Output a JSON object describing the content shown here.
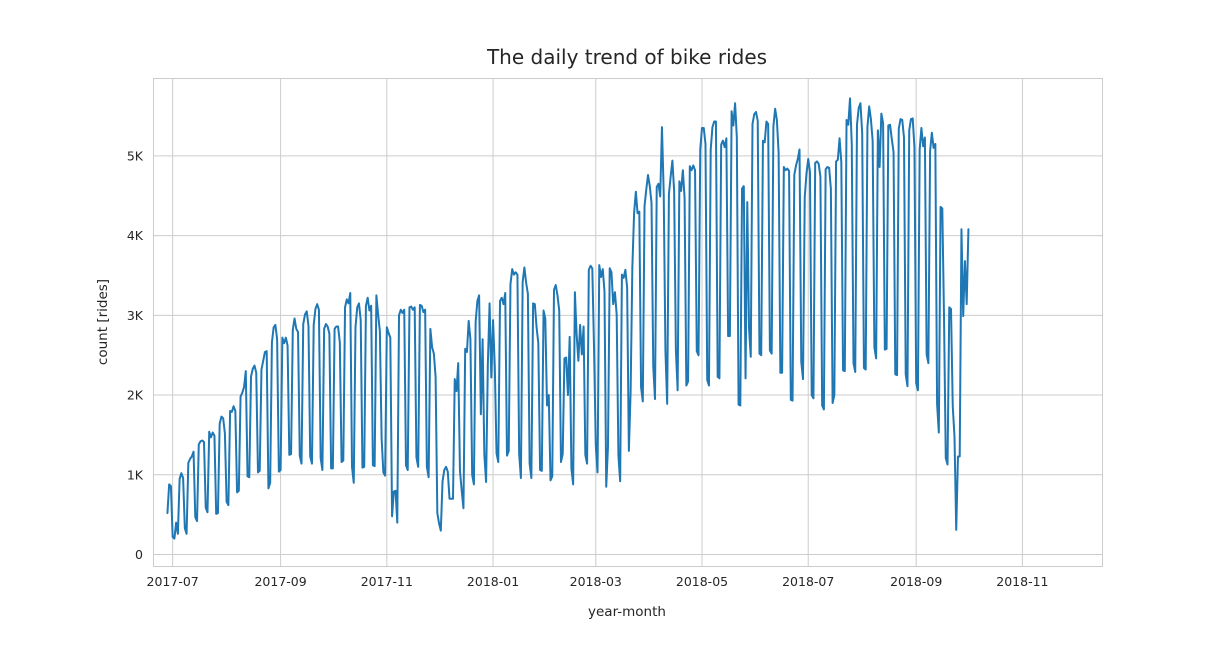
{
  "chart_data": {
    "type": "line",
    "title": "The daily trend of bike rides",
    "xlabel": "year-month",
    "ylabel": "count [rides]",
    "x_ticks": [
      "2017-07",
      "2017-09",
      "2017-11",
      "2018-01",
      "2018-03",
      "2018-05",
      "2018-07",
      "2018-09",
      "2018-11"
    ],
    "y_ticks": [
      {
        "value": 0,
        "label": "0"
      },
      {
        "value": 1000,
        "label": "1K"
      },
      {
        "value": 2000,
        "label": "2K"
      },
      {
        "value": 3000,
        "label": "3K"
      },
      {
        "value": 4000,
        "label": "4K"
      },
      {
        "value": 5000,
        "label": "5K"
      }
    ],
    "xlim": [
      "2017-06-20",
      "2018-12-17"
    ],
    "ylim": [
      -150,
      5970
    ],
    "grid": true,
    "line_color": "#1f77b4",
    "series": [
      {
        "x_start": "2017-06-28",
        "values": [
          520,
          880,
          860,
          220,
          200,
          400,
          260,
          950,
          1020,
          960,
          330,
          260,
          1150,
          1200,
          1230,
          1290,
          470,
          420,
          1380,
          1420,
          1430,
          1410,
          590,
          530,
          1540,
          1470,
          1530,
          1490,
          510,
          520,
          1640,
          1730,
          1710,
          1520,
          660,
          620,
          1800,
          1790,
          1860,
          1800,
          780,
          800,
          1980,
          2030,
          2100,
          2300,
          980,
          970,
          2230,
          2330,
          2370,
          2280,
          1030,
          1050,
          2320,
          2430,
          2540,
          2550,
          830,
          900,
          2660,
          2850,
          2880,
          2700,
          1040,
          1060,
          2720,
          2650,
          2720,
          2620,
          1250,
          1260,
          2820,
          2960,
          2830,
          2790,
          1240,
          1140,
          2890,
          3010,
          3050,
          2870,
          1230,
          1140,
          2880,
          3080,
          3140,
          3070,
          1210,
          1060,
          2830,
          2890,
          2860,
          2770,
          1080,
          1080,
          2830,
          2860,
          2860,
          2660,
          1160,
          1180,
          3100,
          3200,
          3150,
          3280,
          1100,
          900,
          2850,
          3100,
          3150,
          2940,
          1090,
          1100,
          3120,
          3220,
          3060,
          3120,
          1120,
          1110,
          3250,
          3010,
          2800,
          1460,
          1030,
          990,
          2850,
          2780,
          2720,
          480,
          790,
          800,
          400,
          3000,
          3070,
          3030,
          3070,
          1120,
          1060,
          3100,
          3110,
          3070,
          3100,
          1220,
          1100,
          3130,
          3120,
          3040,
          3070,
          1100,
          970,
          2830,
          2600,
          2520,
          2230,
          520,
          390,
          300,
          920,
          1060,
          1100,
          1040,
          700,
          700,
          700,
          2200,
          2050,
          2400,
          1050,
          800,
          580,
          2580,
          2540,
          2930,
          2700,
          1000,
          880,
          2920,
          3180,
          3250,
          1760,
          2700,
          1250,
          910,
          2380,
          3150,
          2220,
          2940,
          2360,
          1270,
          1160,
          3180,
          3220,
          3140,
          3280,
          1240,
          1300,
          3390,
          3580,
          3510,
          3540,
          3510,
          1260,
          960,
          3420,
          3600,
          3410,
          3270,
          1140,
          960,
          3150,
          3140,
          2850,
          2650,
          1060,
          1050,
          3060,
          2960,
          1870,
          2000,
          930,
          980,
          3320,
          3380,
          3250,
          3060,
          1160,
          1260,
          2460,
          2470,
          2000,
          2730,
          1080,
          880,
          3290,
          2760,
          2430,
          2880,
          2510,
          2860,
          1250,
          1140,
          3570,
          3620,
          3590,
          2590,
          1370,
          1030,
          3630,
          3480,
          3580,
          3300,
          850,
          1350,
          3590,
          3540,
          3140,
          3290,
          3010,
          1240,
          920,
          3510,
          3470,
          3570,
          3350,
          1300,
          2040,
          3600,
          4280,
          4550,
          4280,
          4300,
          2100,
          1920,
          4370,
          4580,
          4760,
          4620,
          4410,
          2360,
          1950,
          4610,
          4650,
          4490,
          5360,
          4540,
          2550,
          1890,
          4520,
          4740,
          4940,
          4560,
          2560,
          2060,
          4680,
          4560,
          4820,
          4470,
          2120,
          2170,
          4870,
          4820,
          4880,
          4820,
          2550,
          2500,
          5080,
          5350,
          5350,
          5150,
          2190,
          2120,
          5080,
          5360,
          5430,
          5430,
          2230,
          2210,
          5140,
          5190,
          5110,
          5220,
          2740,
          2740,
          5560,
          5380,
          5660,
          5230,
          1880,
          1870,
          4590,
          4620,
          2210,
          4420,
          2840,
          2480,
          5400,
          5520,
          5550,
          5440,
          2520,
          2500,
          5190,
          5170,
          5430,
          5400,
          2560,
          2520,
          5370,
          5590,
          5450,
          5040,
          2280,
          2280,
          4860,
          4820,
          4840,
          4810,
          1940,
          1930,
          4760,
          4880,
          4960,
          5080,
          2420,
          2200,
          4480,
          4780,
          4960,
          4800,
          2000,
          1960,
          4910,
          4930,
          4900,
          4740,
          1870,
          1820,
          4830,
          4860,
          4850,
          4590,
          1900,
          2000,
          4930,
          4950,
          5220,
          4920,
          2310,
          2300,
          5450,
          5390,
          5720,
          5150,
          2400,
          2290,
          5390,
          5600,
          5660,
          5280,
          2340,
          2320,
          5360,
          5620,
          5460,
          5190,
          2600,
          2460,
          5320,
          4860,
          5530,
          5410,
          2570,
          2580,
          5380,
          5390,
          5210,
          5050,
          2260,
          2250,
          5340,
          5460,
          5450,
          5230,
          2260,
          2110,
          5320,
          5460,
          5470,
          5110,
          2150,
          2060,
          5080,
          5350,
          5120,
          5230,
          2510,
          2400,
          5060,
          5290,
          5100,
          5150,
          1890,
          1530,
          4360,
          4340,
          2950,
          1210,
          1130,
          3100,
          3080,
          1860,
          1480,
          310,
          1230,
          1230,
          4080,
          2990,
          3680,
          3140,
          4080
        ]
      }
    ]
  }
}
